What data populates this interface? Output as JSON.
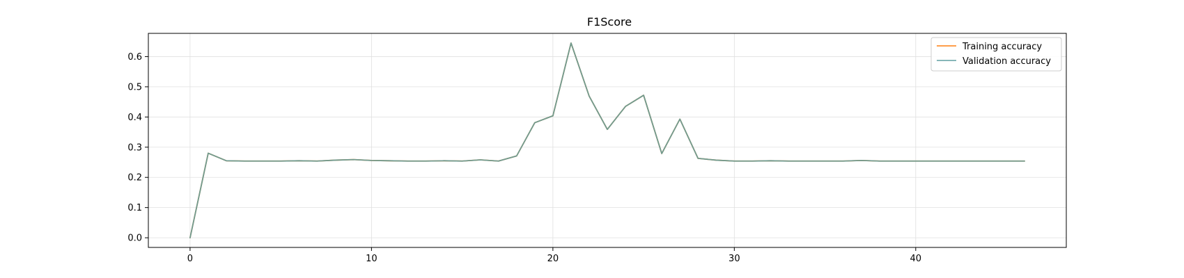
{
  "chart_data": {
    "type": "line",
    "title": "F1Score",
    "xlabel": "",
    "ylabel": "",
    "xlim": [
      -2.3,
      48.3
    ],
    "ylim": [
      -0.032,
      0.677
    ],
    "xticks": [
      0,
      10,
      20,
      30,
      40
    ],
    "yticks": [
      0.0,
      0.1,
      0.2,
      0.3,
      0.4,
      0.5,
      0.6
    ],
    "ytick_labels": [
      "0.0",
      "0.1",
      "0.2",
      "0.3",
      "0.4",
      "0.5",
      "0.6"
    ],
    "grid": true,
    "legend_position": "top-right",
    "x": [
      0,
      1,
      2,
      3,
      4,
      5,
      6,
      7,
      8,
      9,
      10,
      11,
      12,
      13,
      14,
      15,
      16,
      17,
      18,
      19,
      20,
      21,
      22,
      23,
      24,
      25,
      26,
      27,
      28,
      29,
      30,
      31,
      32,
      33,
      34,
      35,
      36,
      37,
      38,
      39,
      40,
      41,
      42,
      43,
      44,
      45,
      46
    ],
    "series": [
      {
        "name": "Training accuracy",
        "color": "#ff7f0e",
        "values": [
          0.0,
          0.28,
          0.255,
          0.254,
          0.254,
          0.254,
          0.255,
          0.254,
          0.257,
          0.259,
          0.256,
          0.255,
          0.254,
          0.254,
          0.255,
          0.254,
          0.258,
          0.254,
          0.271,
          0.381,
          0.404,
          0.645,
          0.469,
          0.359,
          0.435,
          0.472,
          0.279,
          0.393,
          0.263,
          0.257,
          0.254,
          0.254,
          0.255,
          0.254,
          0.254,
          0.254,
          0.254,
          0.256,
          0.254,
          0.254,
          0.254,
          0.254,
          0.254,
          0.254,
          0.254,
          0.254,
          0.254
        ]
      },
      {
        "name": "Validation accuracy",
        "color": "#5f9ea0",
        "values": [
          0.0,
          0.28,
          0.255,
          0.254,
          0.254,
          0.254,
          0.255,
          0.254,
          0.257,
          0.259,
          0.256,
          0.255,
          0.254,
          0.254,
          0.255,
          0.254,
          0.258,
          0.254,
          0.271,
          0.381,
          0.404,
          0.645,
          0.469,
          0.359,
          0.435,
          0.472,
          0.279,
          0.393,
          0.263,
          0.257,
          0.254,
          0.254,
          0.255,
          0.254,
          0.254,
          0.254,
          0.254,
          0.256,
          0.254,
          0.254,
          0.254,
          0.254,
          0.254,
          0.254,
          0.254,
          0.254,
          0.254
        ]
      }
    ]
  }
}
